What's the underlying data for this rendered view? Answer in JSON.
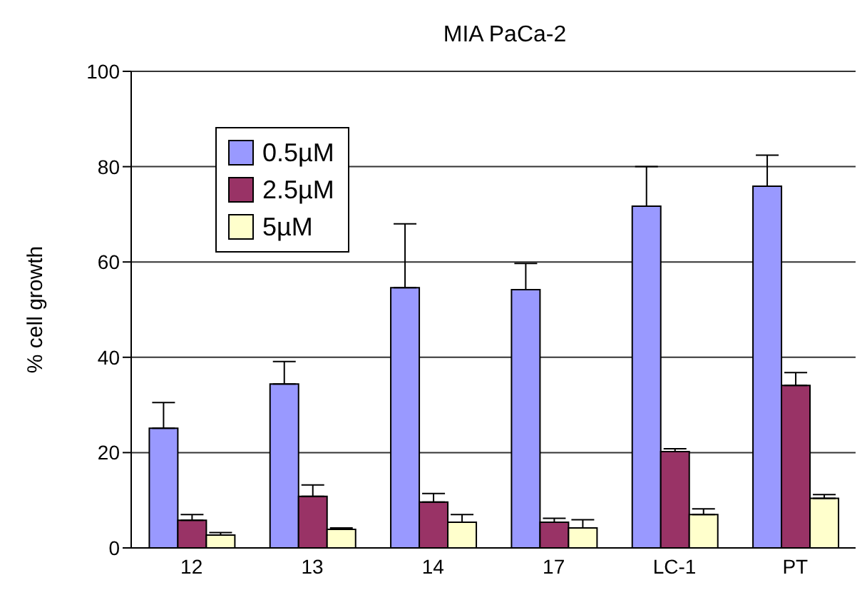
{
  "chart_data": {
    "type": "bar",
    "title": "MIA PaCa-2",
    "ylabel": "% cell growth",
    "categories": [
      "12",
      "13",
      "14",
      "17",
      "LC-1",
      "PT"
    ],
    "series": [
      {
        "name": "0.5µM",
        "color": "#9999ff",
        "values": [
          25.1,
          34.4,
          54.6,
          54.2,
          71.7,
          75.9
        ],
        "errors": [
          [
            25.1,
            30.5
          ],
          [
            34.4,
            39.1
          ],
          [
            54.6,
            68.0
          ],
          [
            54.2,
            59.7
          ],
          [
            71.7,
            80.0
          ],
          [
            75.9,
            82.4
          ]
        ]
      },
      {
        "name": "2.5µM",
        "color": "#993366",
        "values": [
          5.8,
          10.8,
          9.6,
          5.4,
          20.2,
          34.1
        ],
        "errors": [
          [
            5.8,
            7.0
          ],
          [
            10.8,
            13.2
          ],
          [
            9.6,
            11.4
          ],
          [
            5.4,
            6.2
          ],
          [
            20.2,
            20.8
          ],
          [
            34.1,
            36.8
          ]
        ]
      },
      {
        "name": "5µM",
        "color": "#ffffcc",
        "values": [
          2.7,
          3.9,
          5.4,
          4.2,
          7.0,
          10.4
        ],
        "errors": [
          [
            2.7,
            3.2
          ],
          [
            3.9,
            4.2
          ],
          [
            5.4,
            7.0
          ],
          [
            4.2,
            5.9
          ],
          [
            7.0,
            8.2
          ],
          [
            10.4,
            11.2
          ]
        ]
      }
    ],
    "ylim": [
      0,
      100
    ],
    "yticks": [
      0,
      20,
      40,
      60,
      80,
      100
    ],
    "grid": "y",
    "legend": "top left"
  }
}
